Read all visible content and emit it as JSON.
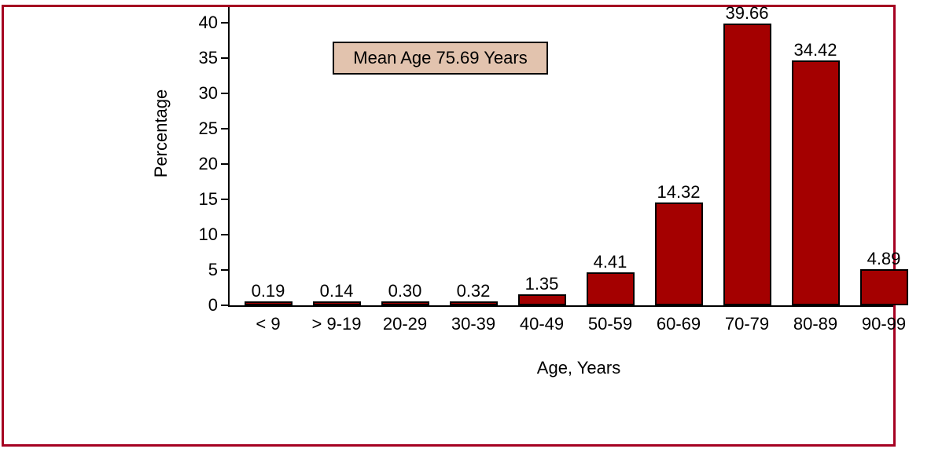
{
  "chart_data": {
    "type": "bar",
    "categories": [
      "< 9",
      "> 9-19",
      "20-29",
      "30-39",
      "40-49",
      "50-59",
      "60-69",
      "70-79",
      "80-89",
      "90-99"
    ],
    "values": [
      0.19,
      0.14,
      0.3,
      0.32,
      1.35,
      4.41,
      14.32,
      39.66,
      34.42,
      4.89
    ],
    "value_labels": [
      "0.19",
      "0.14",
      "0.30",
      "0.32",
      "1.35",
      "4.41",
      "14.32",
      "39.66",
      "34.42",
      "4.89"
    ],
    "title": "",
    "xlabel": "Age, Years",
    "ylabel": "Percentage",
    "ylim": [
      0,
      40
    ],
    "yticks": [
      0,
      5,
      10,
      15,
      20,
      25,
      30,
      35,
      40
    ],
    "grid": "off",
    "legend": "none",
    "annotation_text": "Mean Age 75.69 Years",
    "note": "right-most bar and its labels are clipped by the figure border; 39.66 label clipped at top"
  },
  "colors": {
    "bar_fill": "#a40000",
    "bar_outline": "#000000",
    "frame_border": "#a50021",
    "annotation_fill": "#e2c3ae",
    "annotation_border": "#000000",
    "axis_color": "#000000",
    "text_color": "#000000",
    "background": "#ffffff"
  }
}
